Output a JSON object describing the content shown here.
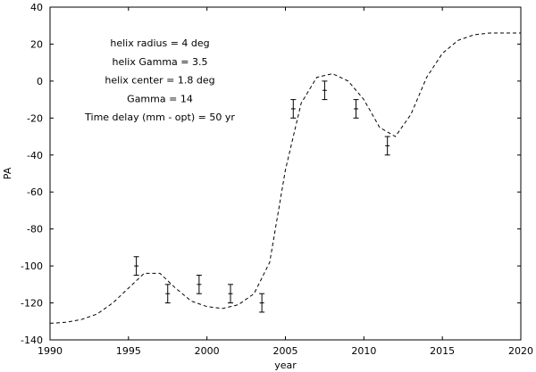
{
  "chart_data": {
    "type": "line",
    "xlabel": "year",
    "ylabel": "PA",
    "xlim": [
      1990,
      2020
    ],
    "ylim": [
      -140,
      40
    ],
    "x_ticks": [
      1990,
      1995,
      2000,
      2005,
      2010,
      2015,
      2020
    ],
    "y_ticks": [
      40,
      20,
      0,
      -20,
      -40,
      -60,
      -80,
      -100,
      -120,
      -140
    ],
    "grid": false,
    "annotations": [
      "helix radius = 4 deg",
      "helix Gamma = 3.5",
      "helix center = 1.8 deg",
      "Gamma = 14",
      "Time delay (mm - opt) = 50 yr"
    ],
    "model_curve": {
      "style": "dashed",
      "x": [
        1990,
        1991,
        1992,
        1993,
        1994,
        1995,
        1996,
        1997,
        1998,
        1999,
        2000,
        2001,
        2002,
        2003,
        2004,
        2005,
        2006,
        2007,
        2008,
        2009,
        2010,
        2011,
        2012,
        2013,
        2014,
        2015,
        2016,
        2017,
        2018,
        2019,
        2020
      ],
      "y": [
        -131,
        -130.5,
        -129,
        -126,
        -120,
        -112,
        -104,
        -104,
        -112,
        -119,
        -122,
        -123,
        -121,
        -115,
        -98,
        -48,
        -12,
        2,
        4,
        0,
        -10,
        -25,
        -30,
        -18,
        2,
        15,
        22,
        25,
        26,
        26,
        26
      ]
    },
    "observations": {
      "x": [
        1995.5,
        1997.5,
        1999.5,
        2001.5,
        2003.5,
        2005.5,
        2007.5,
        2009.5,
        2011.5
      ],
      "y": [
        -100,
        -115,
        -110,
        -115,
        -120,
        -15,
        -5,
        -15,
        -35
      ],
      "err": [
        5,
        5,
        5,
        5,
        5,
        5,
        5,
        5,
        5
      ]
    }
  }
}
